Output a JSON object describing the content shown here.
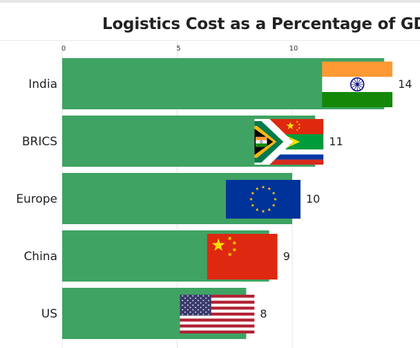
{
  "chart_data": {
    "type": "bar",
    "orientation": "horizontal",
    "title": "Logistics Cost as a Percentage of GDP",
    "xlabel": "",
    "ylabel": "",
    "xlim": [
      0,
      15
    ],
    "x_ticks": [
      0,
      5,
      10
    ],
    "grid": true,
    "legend": "none",
    "bar_color": "#3fa363",
    "categories": [
      "India",
      "BRICS",
      "Europe",
      "China",
      "US"
    ],
    "values": [
      14,
      11,
      10,
      9,
      8
    ],
    "value_labels": [
      "14",
      "11",
      "10",
      "9",
      "8"
    ],
    "bar_icons": [
      "india-flag-icon",
      "brics-flags-icon",
      "eu-flag-icon",
      "china-flag-icon",
      "us-flag-icon"
    ]
  }
}
